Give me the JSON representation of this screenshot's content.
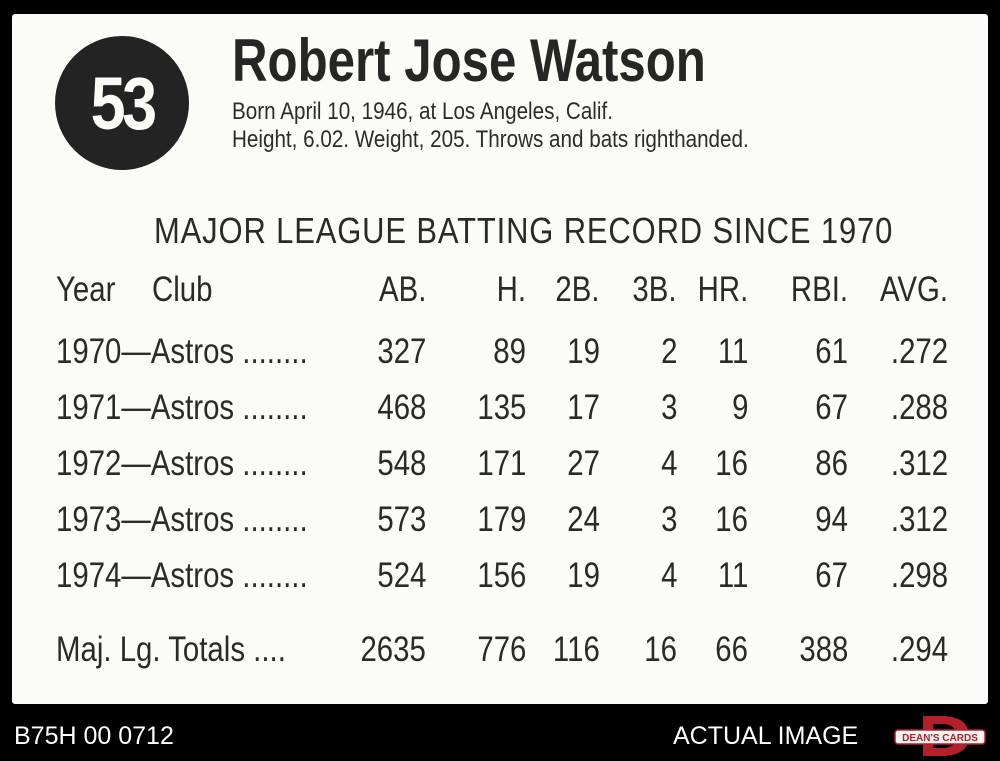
{
  "card": {
    "number": "53",
    "name": "Robert Jose Watson",
    "bio_line1": "Born April 10, 1946, at Los Angeles, Calif.",
    "bio_line2": "Height, 6.02. Weight, 205. Throws and bats righthanded.",
    "table_title": "MAJOR LEAGUE BATTING RECORD SINCE 1970",
    "headers": {
      "year": "Year",
      "club": "Club",
      "ab": "AB.",
      "h": "H.",
      "2b": "2B.",
      "3b": "3B.",
      "hr": "HR.",
      "rbi": "RBI.",
      "avg": "AVG."
    },
    "rows": [
      {
        "team": "1970—Astros ........",
        "ab": "327",
        "h": "89",
        "2b": "19",
        "3b": "2",
        "hr": "11",
        "rbi": "61",
        "avg": ".272"
      },
      {
        "team": "1971—Astros ........",
        "ab": "468",
        "h": "135",
        "2b": "17",
        "3b": "3",
        "hr": "9",
        "rbi": "67",
        "avg": ".288"
      },
      {
        "team": "1972—Astros ........",
        "ab": "548",
        "h": "171",
        "2b": "27",
        "3b": "4",
        "hr": "16",
        "rbi": "86",
        "avg": ".312"
      },
      {
        "team": "1973—Astros ........",
        "ab": "573",
        "h": "179",
        "2b": "24",
        "3b": "3",
        "hr": "16",
        "rbi": "94",
        "avg": ".312"
      },
      {
        "team": "1974—Astros ........",
        "ab": "524",
        "h": "156",
        "2b": "19",
        "3b": "4",
        "hr": "11",
        "rbi": "67",
        "avg": ".298"
      }
    ],
    "totals": {
      "team": "Maj. Lg. Totals ....",
      "ab": "2635",
      "h": "776",
      "2b": "116",
      "3b": "16",
      "hr": "66",
      "rbi": "388",
      "avg": ".294"
    }
  },
  "footer": {
    "id": "B75H 00 0712",
    "label": "ACTUAL IMAGE",
    "logo_text": "DEAN'S CARDS",
    "logo_letter": "D"
  },
  "colors": {
    "background": "#000000",
    "card": "#fbfbf8",
    "ink": "#2a2a2a",
    "logo_red": "#b3202a"
  }
}
